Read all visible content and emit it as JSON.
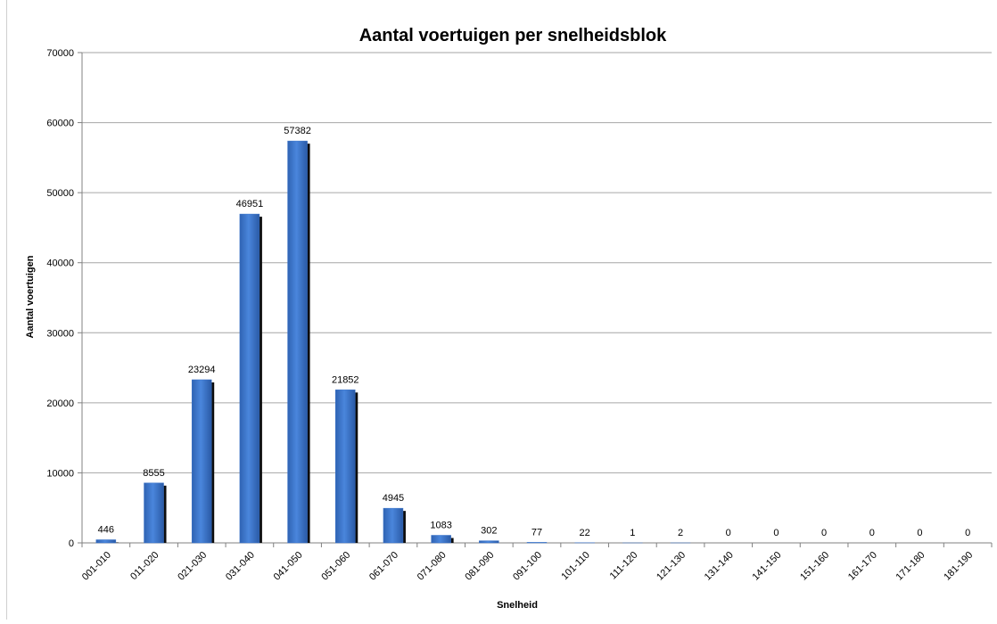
{
  "chart_data": {
    "type": "bar",
    "title": "Aantal voertuigen per snelheidsblok",
    "xlabel": "Snelheid",
    "ylabel": "Aantal voertuigen",
    "ylim": [
      0,
      70000
    ],
    "yticks": [
      0,
      10000,
      20000,
      30000,
      40000,
      50000,
      60000,
      70000
    ],
    "grid": true,
    "legend": "none",
    "bar_color": "#3a73c9",
    "bar_shadow_color": "#0d0d0d",
    "categories": [
      "001-010",
      "011-020",
      "021-030",
      "031-040",
      "041-050",
      "051-060",
      "061-070",
      "071-080",
      "081-090",
      "091-100",
      "101-110",
      "111-120",
      "121-130",
      "131-140",
      "141-150",
      "151-160",
      "161-170",
      "171-180",
      "181-190"
    ],
    "values": [
      446,
      8555,
      23294,
      46951,
      57382,
      21852,
      4945,
      1083,
      302,
      77,
      22,
      1,
      2,
      0,
      0,
      0,
      0,
      0,
      0
    ]
  }
}
